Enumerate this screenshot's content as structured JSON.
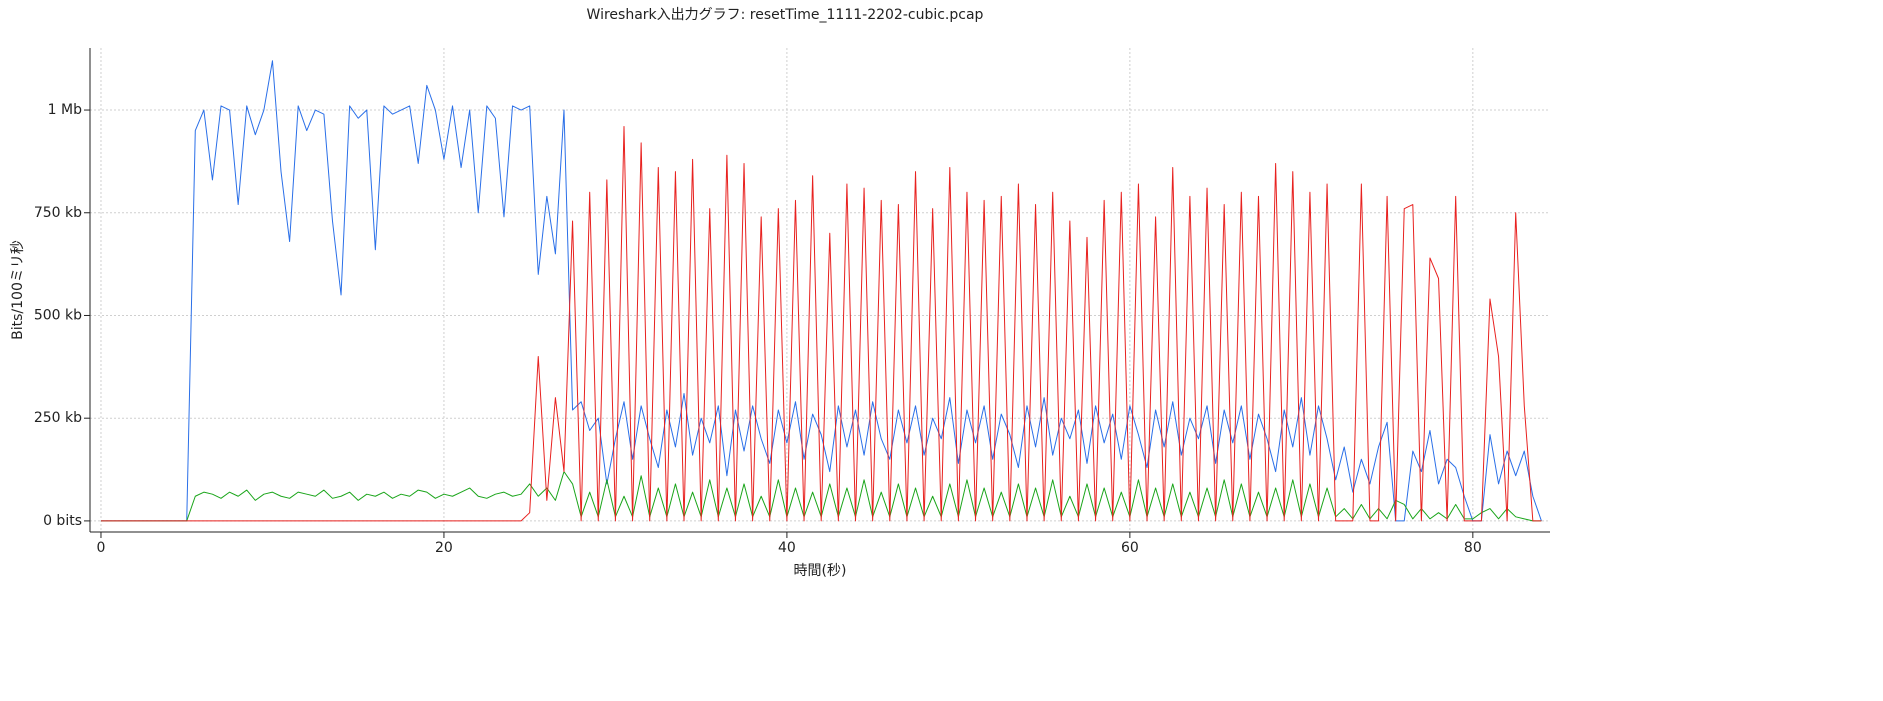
{
  "chart_data": {
    "type": "line",
    "title": "Wireshark入出力グラフ: resetTime_1111-2202-cubic.pcap",
    "xlabel": "時間(秒)",
    "ylabel": "Bits/100ミリ秒",
    "xlim": [
      -0.64,
      84.5
    ],
    "xticks": [
      0,
      20,
      40,
      60,
      80
    ],
    "ylim": [
      -27,
      1151
    ],
    "yticks": [
      {
        "value": 0,
        "label": "0 bits"
      },
      {
        "value": 250,
        "label": "250 kb"
      },
      {
        "value": 500,
        "label": "500 kb"
      },
      {
        "value": 750,
        "label": "750 kb"
      },
      {
        "value": 1000,
        "label": "1 Mb"
      }
    ],
    "grid": true,
    "x": [
      0,
      0.5,
      1,
      1.5,
      2,
      2.5,
      3,
      3.5,
      4,
      4.5,
      5,
      5.5,
      6,
      6.5,
      7,
      7.5,
      8,
      8.5,
      9,
      9.5,
      10,
      10.5,
      11,
      11.5,
      12,
      12.5,
      13,
      13.5,
      14,
      14.5,
      15,
      15.5,
      16,
      16.5,
      17,
      17.5,
      18,
      18.5,
      19,
      19.5,
      20,
      20.5,
      21,
      21.5,
      22,
      22.5,
      23,
      23.5,
      24,
      24.5,
      25,
      25.5,
      26,
      26.5,
      27,
      27.5,
      28,
      28.5,
      29,
      29.5,
      30,
      30.5,
      31,
      31.5,
      32,
      32.5,
      33,
      33.5,
      34,
      34.5,
      35,
      35.5,
      36,
      36.5,
      37,
      37.5,
      38,
      38.5,
      39,
      39.5,
      40,
      40.5,
      41,
      41.5,
      42,
      42.5,
      43,
      43.5,
      44,
      44.5,
      45,
      45.5,
      46,
      46.5,
      47,
      47.5,
      48,
      48.5,
      49,
      49.5,
      50,
      50.5,
      51,
      51.5,
      52,
      52.5,
      53,
      53.5,
      54,
      54.5,
      55,
      55.5,
      56,
      56.5,
      57,
      57.5,
      58,
      58.5,
      59,
      59.5,
      60,
      60.5,
      61,
      61.5,
      62,
      62.5,
      63,
      63.5,
      64,
      64.5,
      65,
      65.5,
      66,
      66.5,
      67,
      67.5,
      68,
      68.5,
      69,
      69.5,
      70,
      70.5,
      71,
      71.5,
      72,
      72.5,
      73,
      73.5,
      74,
      74.5,
      75,
      75.5,
      76,
      76.5,
      77,
      77.5,
      78,
      78.5,
      79,
      79.5,
      80,
      80.5,
      81,
      81.5,
      82,
      82.5,
      83,
      83.5,
      84
    ],
    "series": [
      {
        "color": "#2a6fe8",
        "values": [
          0,
          0,
          0,
          0,
          0,
          0,
          0,
          0,
          0,
          0,
          0,
          950,
          1000,
          830,
          1010,
          1000,
          770,
          1010,
          940,
          1000,
          1120,
          850,
          680,
          1010,
          950,
          1000,
          990,
          730,
          550,
          1010,
          980,
          1000,
          660,
          1010,
          990,
          1000,
          1010,
          870,
          1060,
          1000,
          880,
          1010,
          860,
          1000,
          750,
          1010,
          980,
          740,
          1010,
          1000,
          1010,
          600,
          790,
          650,
          1000,
          270,
          290,
          220,
          250,
          90,
          200,
          290,
          150,
          280,
          200,
          130,
          270,
          180,
          310,
          160,
          250,
          190,
          280,
          110,
          270,
          170,
          280,
          200,
          140,
          270,
          190,
          290,
          150,
          260,
          210,
          120,
          280,
          180,
          270,
          160,
          290,
          200,
          150,
          270,
          190,
          280,
          160,
          250,
          200,
          300,
          140,
          270,
          190,
          280,
          150,
          260,
          210,
          130,
          280,
          180,
          300,
          160,
          250,
          200,
          270,
          140,
          280,
          190,
          260,
          150,
          280,
          210,
          130,
          270,
          180,
          290,
          160,
          250,
          200,
          280,
          140,
          270,
          190,
          280,
          150,
          260,
          200,
          120,
          270,
          180,
          300,
          160,
          280,
          200,
          100,
          180,
          70,
          150,
          90,
          180,
          240,
          0,
          0,
          170,
          120,
          220,
          90,
          150,
          130,
          60,
          0,
          0,
          210,
          90,
          170,
          110,
          170,
          60,
          0
        ]
      },
      {
        "color": "#1aa51a",
        "values": [
          0,
          0,
          0,
          0,
          0,
          0,
          0,
          0,
          0,
          0,
          0,
          60,
          70,
          65,
          55,
          70,
          60,
          75,
          50,
          65,
          70,
          60,
          55,
          70,
          65,
          60,
          75,
          55,
          60,
          70,
          50,
          65,
          60,
          70,
          55,
          65,
          60,
          75,
          70,
          55,
          65,
          60,
          70,
          80,
          60,
          55,
          65,
          70,
          60,
          65,
          90,
          60,
          80,
          50,
          120,
          90,
          10,
          70,
          10,
          100,
          10,
          60,
          10,
          110,
          10,
          80,
          10,
          90,
          10,
          70,
          10,
          100,
          10,
          80,
          10,
          90,
          10,
          60,
          10,
          100,
          10,
          80,
          10,
          70,
          10,
          90,
          10,
          80,
          10,
          100,
          10,
          70,
          10,
          90,
          10,
          80,
          10,
          60,
          10,
          90,
          10,
          100,
          10,
          80,
          10,
          70,
          10,
          90,
          10,
          80,
          10,
          100,
          10,
          60,
          10,
          90,
          10,
          80,
          10,
          70,
          10,
          100,
          10,
          80,
          10,
          90,
          10,
          70,
          10,
          80,
          10,
          100,
          10,
          90,
          10,
          70,
          10,
          80,
          10,
          100,
          10,
          90,
          10,
          80,
          10,
          30,
          5,
          40,
          5,
          30,
          5,
          50,
          40,
          5,
          30,
          5,
          20,
          5,
          40,
          5,
          5,
          20,
          30,
          5,
          30,
          10,
          5,
          0,
          0
        ]
      },
      {
        "color": "#e8211f",
        "values": [
          0,
          0,
          0,
          0,
          0,
          0,
          0,
          0,
          0,
          0,
          0,
          0,
          0,
          0,
          0,
          0,
          0,
          0,
          0,
          0,
          0,
          0,
          0,
          0,
          0,
          0,
          0,
          0,
          0,
          0,
          0,
          0,
          0,
          0,
          0,
          0,
          0,
          0,
          0,
          0,
          0,
          0,
          0,
          0,
          0,
          0,
          0,
          0,
          0,
          0,
          20,
          400,
          50,
          300,
          120,
          730,
          0,
          800,
          0,
          830,
          0,
          960,
          0,
          920,
          0,
          860,
          0,
          850,
          0,
          880,
          0,
          760,
          0,
          890,
          0,
          870,
          0,
          740,
          0,
          760,
          0,
          780,
          0,
          840,
          0,
          700,
          0,
          820,
          0,
          810,
          0,
          780,
          0,
          770,
          0,
          850,
          0,
          760,
          0,
          860,
          0,
          800,
          0,
          780,
          0,
          790,
          0,
          820,
          0,
          770,
          0,
          800,
          0,
          730,
          0,
          690,
          0,
          780,
          0,
          800,
          0,
          820,
          0,
          740,
          0,
          860,
          0,
          790,
          0,
          810,
          0,
          770,
          0,
          800,
          0,
          790,
          0,
          870,
          0,
          850,
          0,
          800,
          0,
          820,
          0,
          0,
          0,
          820,
          0,
          0,
          790,
          0,
          760,
          770,
          0,
          640,
          590,
          0,
          790,
          0,
          0,
          0,
          540,
          400,
          0,
          750,
          280,
          0,
          0
        ]
      }
    ]
  }
}
